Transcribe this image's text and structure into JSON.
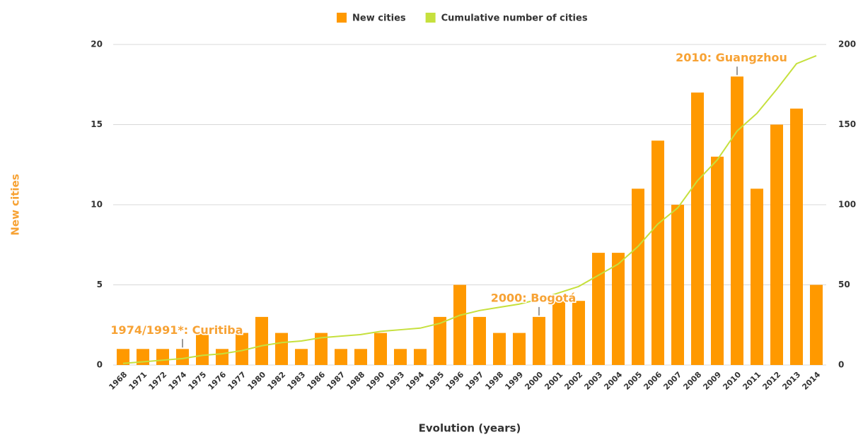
{
  "chart_data": {
    "type": "bar_line",
    "categories": [
      "1968",
      "1971",
      "1972",
      "1974",
      "1975",
      "1976",
      "1977",
      "1980",
      "1982",
      "1983",
      "1986",
      "1987",
      "1988",
      "1990",
      "1993",
      "1994",
      "1995",
      "1996",
      "1997",
      "1998",
      "1999",
      "2000",
      "2001",
      "2002",
      "2003",
      "2004",
      "2005",
      "2006",
      "2007",
      "2008",
      "2009",
      "2010",
      "2011",
      "2012",
      "2013",
      "2014"
    ],
    "series": [
      {
        "name": "New cities",
        "color": "#ff9900",
        "type": "bar",
        "values": [
          1,
          1,
          1,
          1,
          2,
          1,
          2,
          3,
          2,
          1,
          2,
          1,
          1,
          2,
          1,
          1,
          3,
          5,
          3,
          2,
          2,
          3,
          4,
          4,
          7,
          7,
          11,
          14,
          10,
          17,
          13,
          18,
          11,
          15,
          16,
          5
        ]
      },
      {
        "name": "Cumulative number of cities",
        "color": "#c6e03d",
        "type": "line",
        "axis": "y2",
        "values": [
          1,
          2,
          3,
          4,
          6,
          7,
          9,
          12,
          14,
          15,
          17,
          18,
          19,
          21,
          22,
          23,
          26,
          31,
          34,
          36,
          38,
          41,
          45,
          49,
          56,
          63,
          74,
          88,
          98,
          115,
          128,
          146,
          157,
          172,
          188,
          193
        ]
      }
    ],
    "ylabel": "New cities",
    "xlabel": "Evolution (years)",
    "ylim": [
      0,
      20
    ],
    "yticks": [
      0,
      5,
      10,
      15,
      20
    ],
    "y2lim": [
      0,
      200
    ],
    "y2ticks": [
      0,
      50,
      100,
      150,
      200
    ],
    "grid": true,
    "legend": "top",
    "annotations": [
      {
        "text": "1974/1991*: Curitiba",
        "category": "1974"
      },
      {
        "text": "2000: Bogotá",
        "category": "2000"
      },
      {
        "text": "2010: Guangzhou",
        "category": "2010"
      }
    ]
  }
}
